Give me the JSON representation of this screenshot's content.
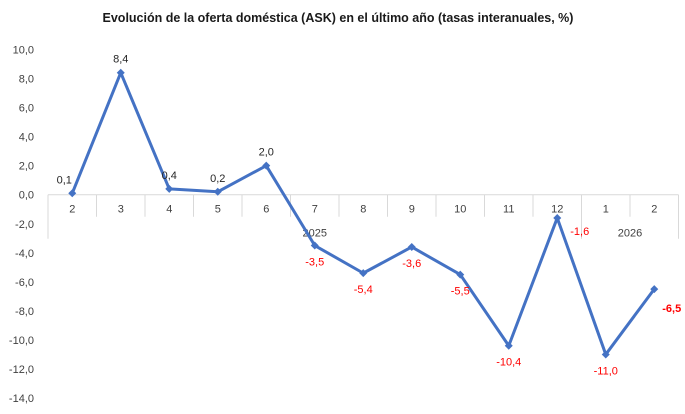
{
  "chart_data": {
    "type": "line",
    "title": "Evolución de la oferta doméstica (ASK) en el último año (tasas interanuales, %)",
    "categories": [
      "2",
      "3",
      "4",
      "5",
      "6",
      "7",
      "8",
      "9",
      "10",
      "11",
      "12",
      "1",
      "2"
    ],
    "year_groups": [
      {
        "label": "2025",
        "from": 0,
        "to": 10
      },
      {
        "label": "2026",
        "from": 11,
        "to": 12
      }
    ],
    "values": [
      0.1,
      8.4,
      0.4,
      0.2,
      2.0,
      -3.5,
      -5.4,
      -3.6,
      -5.5,
      -10.4,
      -1.6,
      -11.0,
      -6.5
    ],
    "data_labels": [
      "0,1",
      "8,4",
      "0,4",
      "0,2",
      "2,0",
      "-3,5",
      "-5,4",
      "-3,6",
      "-5,5",
      "-10,4",
      "-1,6",
      "-11,0",
      "-6,5"
    ],
    "ylim": [
      -14,
      10
    ],
    "yticks": [
      10,
      8,
      6,
      4,
      2,
      0,
      -2,
      -4,
      -6,
      -8,
      -10,
      -12,
      -14
    ],
    "ytick_labels": [
      "10,0",
      "8,0",
      "6,0",
      "4,0",
      "2,0",
      "0,0",
      "-2,0",
      "-4,0",
      "-6,0",
      "-8,0",
      "-10,0",
      "-12,0",
      "-14,0"
    ],
    "grid": false,
    "line_color": "#4472C4",
    "positive_label_color": "#262626",
    "negative_label_color": "#FF0000",
    "xlabel": "",
    "ylabel": ""
  }
}
